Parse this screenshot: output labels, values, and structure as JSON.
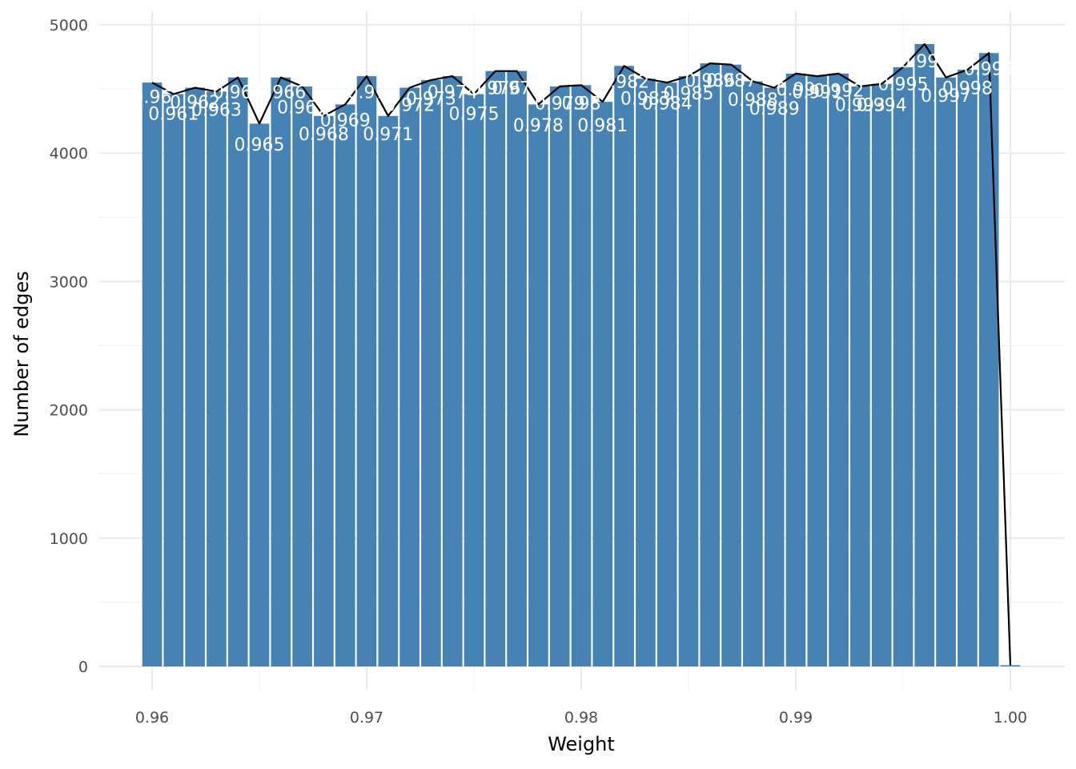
{
  "chart_data": {
    "type": "bar",
    "xlabel": "Weight",
    "ylabel": "Number of edges",
    "xlim": [
      0.958,
      1.0025
    ],
    "ylim": [
      0,
      5000
    ],
    "x_ticks": [
      "0.96",
      "0.97",
      "0.98",
      "0.99",
      "1.00"
    ],
    "y_ticks": [
      "0",
      "1000",
      "2000",
      "3000",
      "4000",
      "5000"
    ],
    "grid": true,
    "legend": "none",
    "bar_width": 0.00092,
    "colors": {
      "bar": "#4682b4",
      "line": "#000000",
      "label": "#ffffff",
      "grid": "#ebebeb"
    },
    "series": [
      {
        "kind": "bar",
        "x": [
          0.96,
          0.961,
          0.962,
          0.963,
          0.964,
          0.965,
          0.966,
          0.967,
          0.968,
          0.969,
          0.97,
          0.971,
          0.972,
          0.973,
          0.974,
          0.975,
          0.976,
          0.977,
          0.978,
          0.979,
          0.98,
          0.981,
          0.982,
          0.983,
          0.984,
          0.985,
          0.986,
          0.987,
          0.988,
          0.989,
          0.99,
          0.991,
          0.992,
          0.993,
          0.994,
          0.995,
          0.996,
          0.997,
          0.998,
          0.999,
          1.0
        ],
        "values": [
          4550,
          4460,
          4510,
          4480,
          4590,
          4230,
          4590,
          4520,
          4290,
          4380,
          4600,
          4290,
          4510,
          4570,
          4600,
          4460,
          4640,
          4640,
          4380,
          4520,
          4530,
          4400,
          4680,
          4580,
          4550,
          4600,
          4700,
          4690,
          4560,
          4510,
          4620,
          4600,
          4620,
          4520,
          4540,
          4670,
          4850,
          4590,
          4650,
          4780,
          10
        ]
      },
      {
        "kind": "line",
        "x": [
          0.96,
          0.961,
          0.962,
          0.963,
          0.964,
          0.965,
          0.966,
          0.967,
          0.968,
          0.969,
          0.97,
          0.971,
          0.972,
          0.973,
          0.974,
          0.975,
          0.976,
          0.977,
          0.978,
          0.979,
          0.98,
          0.981,
          0.982,
          0.983,
          0.984,
          0.985,
          0.986,
          0.987,
          0.988,
          0.989,
          0.99,
          0.991,
          0.992,
          0.993,
          0.994,
          0.995,
          0.996,
          0.997,
          0.998,
          0.999,
          1.0
        ],
        "values": [
          4550,
          4460,
          4510,
          4480,
          4590,
          4230,
          4590,
          4520,
          4290,
          4380,
          4600,
          4290,
          4510,
          4570,
          4600,
          4460,
          4640,
          4640,
          4380,
          4520,
          4530,
          4400,
          4680,
          4580,
          4550,
          4600,
          4700,
          4690,
          4560,
          4510,
          4620,
          4600,
          4620,
          4520,
          4540,
          4670,
          4850,
          4590,
          4650,
          4780,
          10
        ]
      }
    ],
    "data_labels": [
      {
        "x": 0.96,
        "text": "0.96",
        "y": 4440
      },
      {
        "x": 0.961,
        "text": "0.961",
        "y": 4310
      },
      {
        "x": 0.962,
        "text": "0.962",
        "y": 4400
      },
      {
        "x": 0.963,
        "text": "0.963",
        "y": 4340
      },
      {
        "x": 0.964,
        "text": "0.964",
        "y": 4480
      },
      {
        "x": 0.965,
        "text": "0.965",
        "y": 4070
      },
      {
        "x": 0.966,
        "text": "0.966",
        "y": 4480
      },
      {
        "x": 0.967,
        "text": "0.967",
        "y": 4360
      },
      {
        "x": 0.968,
        "text": "0.968",
        "y": 4150
      },
      {
        "x": 0.969,
        "text": "0.969",
        "y": 4260
      },
      {
        "x": 0.97,
        "text": "0.97",
        "y": 4480
      },
      {
        "x": 0.971,
        "text": "0.971",
        "y": 4150
      },
      {
        "x": 0.972,
        "text": "0.972",
        "y": 4380
      },
      {
        "x": 0.973,
        "text": "0.973",
        "y": 4430
      },
      {
        "x": 0.974,
        "text": "0.974",
        "y": 4480
      },
      {
        "x": 0.975,
        "text": "0.975",
        "y": 4310
      },
      {
        "x": 0.976,
        "text": "0.976",
        "y": 4510
      },
      {
        "x": 0.977,
        "text": "0.977",
        "y": 4510
      },
      {
        "x": 0.978,
        "text": "0.978",
        "y": 4220
      },
      {
        "x": 0.979,
        "text": "0.979",
        "y": 4390
      },
      {
        "x": 0.98,
        "text": "0.98",
        "y": 4390
      },
      {
        "x": 0.981,
        "text": "0.981",
        "y": 4220
      },
      {
        "x": 0.982,
        "text": "0.982",
        "y": 4560
      },
      {
        "x": 0.983,
        "text": "0.983",
        "y": 4430
      },
      {
        "x": 0.984,
        "text": "0.984",
        "y": 4390
      },
      {
        "x": 0.985,
        "text": "0.985",
        "y": 4470
      },
      {
        "x": 0.986,
        "text": "0.986",
        "y": 4570
      },
      {
        "x": 0.987,
        "text": "0.987",
        "y": 4570
      },
      {
        "x": 0.988,
        "text": "0.988",
        "y": 4420
      },
      {
        "x": 0.989,
        "text": "0.989",
        "y": 4350
      },
      {
        "x": 0.99,
        "text": "0.99",
        "y": 4500
      },
      {
        "x": 0.991,
        "text": "0.991",
        "y": 4480
      },
      {
        "x": 0.992,
        "text": "0.992",
        "y": 4490
      },
      {
        "x": 0.993,
        "text": "0.993",
        "y": 4380
      },
      {
        "x": 0.994,
        "text": "0.994",
        "y": 4380
      },
      {
        "x": 0.995,
        "text": "0.995",
        "y": 4540
      },
      {
        "x": 0.996,
        "text": "0.996",
        "y": 4720
      },
      {
        "x": 0.997,
        "text": "0.997",
        "y": 4450
      },
      {
        "x": 0.998,
        "text": "0.998",
        "y": 4510
      },
      {
        "x": 0.999,
        "text": "0.999",
        "y": 4660
      }
    ]
  }
}
